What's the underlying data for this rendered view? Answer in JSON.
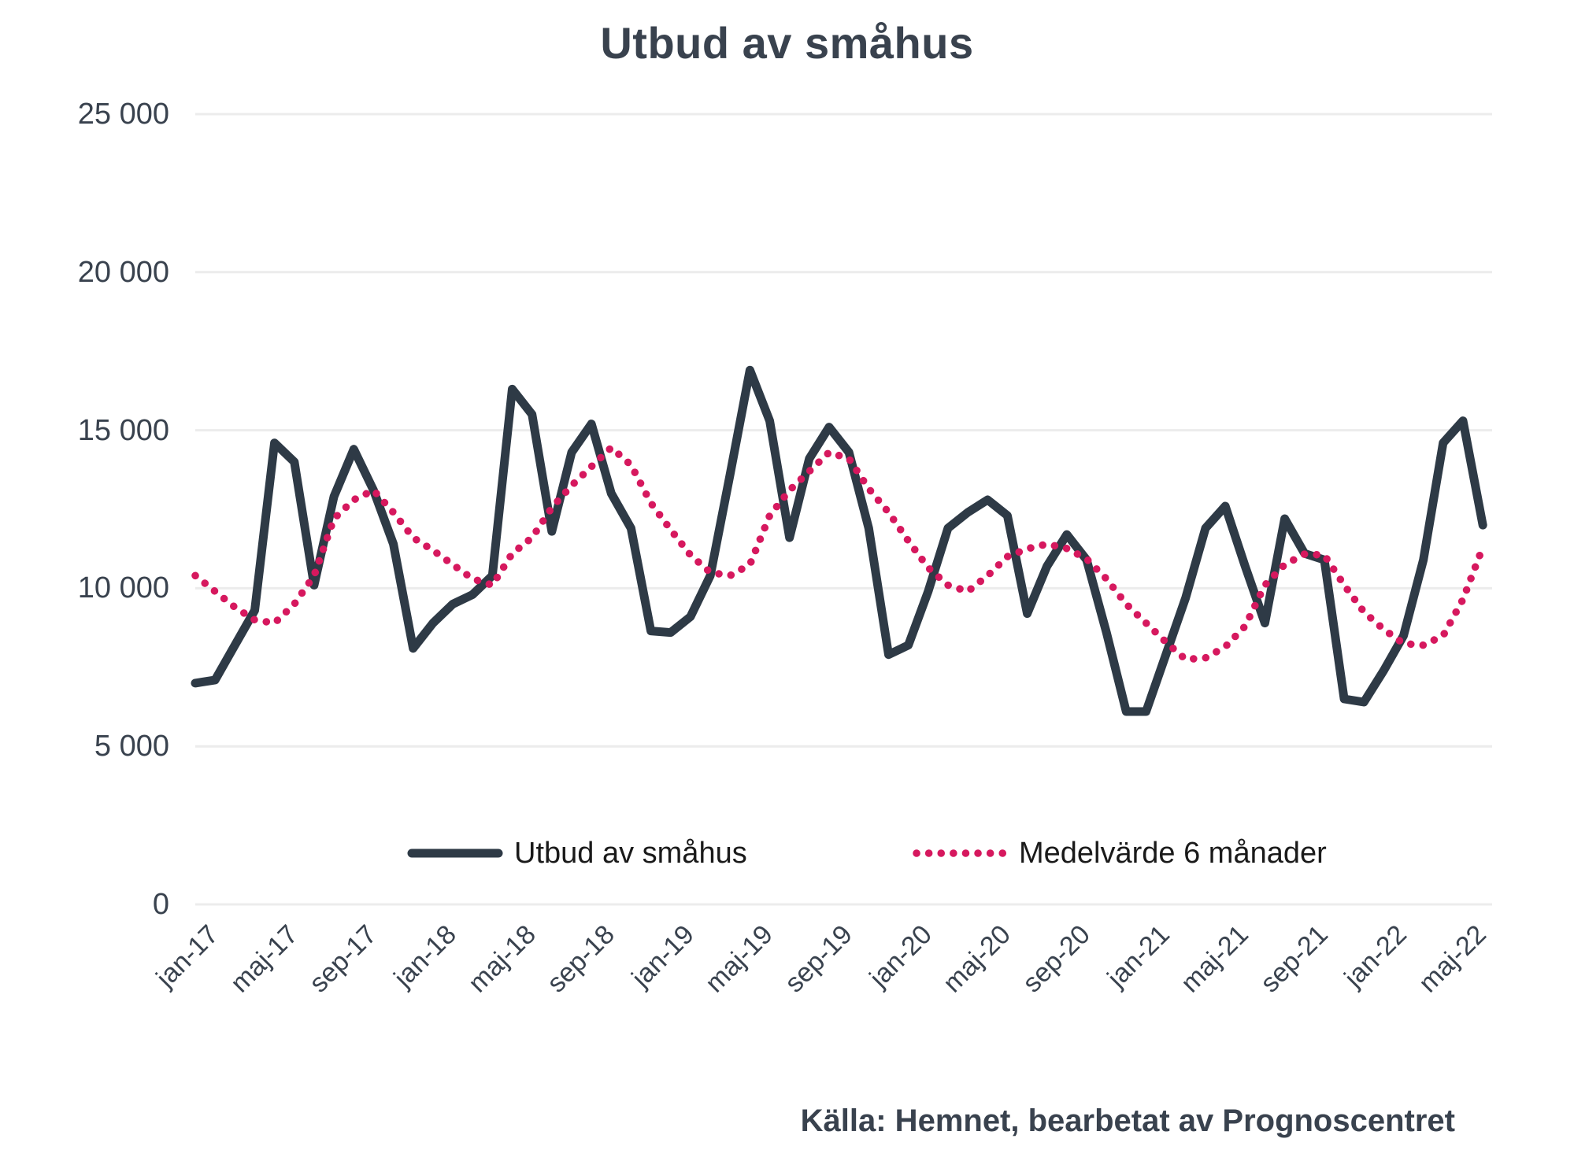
{
  "title": "Utbud av småhus",
  "source": {
    "text": "Källa: Hemnet, bearbetat av Prognoscentret"
  },
  "legend": {
    "items": [
      {
        "label": "Utbud av småhus",
        "style": "solid",
        "color": "#2e3a46"
      },
      {
        "label": "Medelvärde 6 månader",
        "style": "dotted",
        "color": "#d6185e"
      }
    ]
  },
  "colors": {
    "line_dark": "#2e3a46",
    "line_pink": "#d6185e",
    "grid": "#ececec",
    "axis_text": "#39424e",
    "legend_text": "#1a1a1a",
    "background": "#ffffff"
  },
  "chart_data": {
    "type": "line",
    "title": "Utbud av småhus",
    "xlabel": "",
    "ylabel": "",
    "ylim": [
      0,
      25000
    ],
    "grid": "horizontal",
    "legend_position": "bottom-center",
    "yticks": [
      {
        "value": 0,
        "label": "0"
      },
      {
        "value": 5000,
        "label": "5 000"
      },
      {
        "value": 10000,
        "label": "10 000"
      },
      {
        "value": 15000,
        "label": "15 000"
      },
      {
        "value": 20000,
        "label": "20 000"
      },
      {
        "value": 25000,
        "label": "25 000"
      }
    ],
    "x": [
      "jan-17",
      "feb-17",
      "mar-17",
      "apr-17",
      "maj-17",
      "jun-17",
      "jul-17",
      "aug-17",
      "sep-17",
      "okt-17",
      "nov-17",
      "dec-17",
      "jan-18",
      "feb-18",
      "mar-18",
      "apr-18",
      "maj-18",
      "jun-18",
      "jul-18",
      "aug-18",
      "sep-18",
      "okt-18",
      "nov-18",
      "dec-18",
      "jan-19",
      "feb-19",
      "mar-19",
      "apr-19",
      "maj-19",
      "jun-19",
      "jul-19",
      "aug-19",
      "sep-19",
      "okt-19",
      "nov-19",
      "dec-19",
      "jan-20",
      "feb-20",
      "mar-20",
      "apr-20",
      "maj-20",
      "jun-20",
      "jul-20",
      "aug-20",
      "sep-20",
      "okt-20",
      "nov-20",
      "dec-20",
      "jan-21",
      "feb-21",
      "mar-21",
      "apr-21",
      "maj-21",
      "jun-21",
      "jul-21",
      "aug-21",
      "sep-21",
      "okt-21",
      "nov-21",
      "dec-21",
      "jan-22",
      "feb-22",
      "mar-22",
      "apr-22",
      "maj-22",
      "jun-22"
    ],
    "xticks_shown": [
      "jan-17",
      "maj-17",
      "sep-17",
      "jan-18",
      "maj-18",
      "sep-18",
      "jan-19",
      "maj-19",
      "sep-19",
      "jan-20",
      "maj-20",
      "sep-20",
      "jan-21",
      "maj-21",
      "sep-21",
      "jan-22",
      "maj-22"
    ],
    "series": [
      {
        "name": "Utbud av småhus",
        "style": "solid",
        "color": "#2e3a46",
        "values": [
          7000,
          7100,
          8200,
          9300,
          14600,
          14000,
          10100,
          12900,
          14400,
          13100,
          11400,
          8100,
          8900,
          9500,
          9800,
          10400,
          16300,
          15500,
          11800,
          14300,
          15200,
          13000,
          11900,
          8650,
          8600,
          9100,
          10400,
          13600,
          16900,
          15300,
          11600,
          14100,
          15100,
          14300,
          11900,
          7900,
          8200,
          9900,
          11900,
          12400,
          12800,
          12300,
          9200,
          10700,
          11700,
          10900,
          8600,
          6100,
          6100,
          7900,
          9700,
          11900,
          12600,
          10700,
          8900,
          12200,
          11100,
          10900,
          6500,
          6400,
          7400,
          8500,
          10900,
          14600,
          15300,
          12000
        ]
      },
      {
        "name": "Medelvärde 6 månader",
        "style": "dotted",
        "color": "#d6185e",
        "values": [
          10400,
          9900,
          9400,
          9000,
          8900,
          9500,
          10400,
          12200,
          12800,
          13100,
          12400,
          11600,
          11200,
          10750,
          10300,
          10100,
          11100,
          11600,
          12550,
          13250,
          13850,
          14450,
          13900,
          12700,
          11850,
          11050,
          10500,
          10400,
          10750,
          12300,
          13100,
          13700,
          14300,
          14100,
          13150,
          12400,
          11500,
          10650,
          10100,
          9900,
          10400,
          11000,
          11250,
          11400,
          11260,
          10930,
          10300,
          9500,
          8900,
          8300,
          7750,
          7800,
          8150,
          8800,
          10100,
          10750,
          11080,
          11050,
          10100,
          9250,
          8700,
          8250,
          8200,
          8500,
          9650,
          11300
        ]
      }
    ]
  }
}
